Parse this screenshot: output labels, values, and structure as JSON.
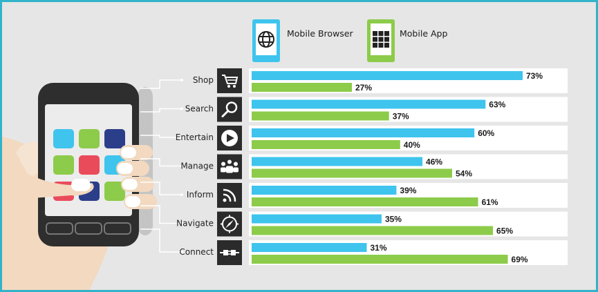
{
  "chart_data": {
    "type": "bar",
    "orientation": "horizontal",
    "categories": [
      "Shop",
      "Search",
      "Entertain",
      "Manage",
      "Inform",
      "Navigate",
      "Connect"
    ],
    "category_icons": [
      "cart-icon",
      "magnifier-icon",
      "play-icon",
      "people-icon",
      "rss-icon",
      "compass-icon",
      "plug-icon"
    ],
    "series": [
      {
        "name": "Mobile Browser",
        "icon": "globe-icon",
        "color": "#3fc4ee",
        "values": [
          73,
          63,
          60,
          46,
          39,
          35,
          31
        ],
        "labels": [
          "73%",
          "63%",
          "60%",
          "46%",
          "39%",
          "35%",
          "31%"
        ]
      },
      {
        "name": "Mobile App",
        "icon": "app-grid-icon",
        "color": "#8dcb4a",
        "values": [
          27,
          37,
          40,
          54,
          61,
          65,
          69
        ],
        "labels": [
          "27%",
          "37%",
          "40%",
          "54%",
          "61%",
          "65%",
          "69%"
        ]
      }
    ],
    "value_unit": "%",
    "xlim": [
      0,
      100
    ],
    "legend_position": "top",
    "grid": false
  },
  "colors": {
    "background": "#e6e6e6",
    "border": "#31b3c9",
    "icon_tile": "#2b2b2b",
    "phone_body": "#2e2e2e",
    "hand": "#f2d9bf"
  },
  "illustration": {
    "device": "smartphone-icon",
    "hand": "hand-icon"
  }
}
